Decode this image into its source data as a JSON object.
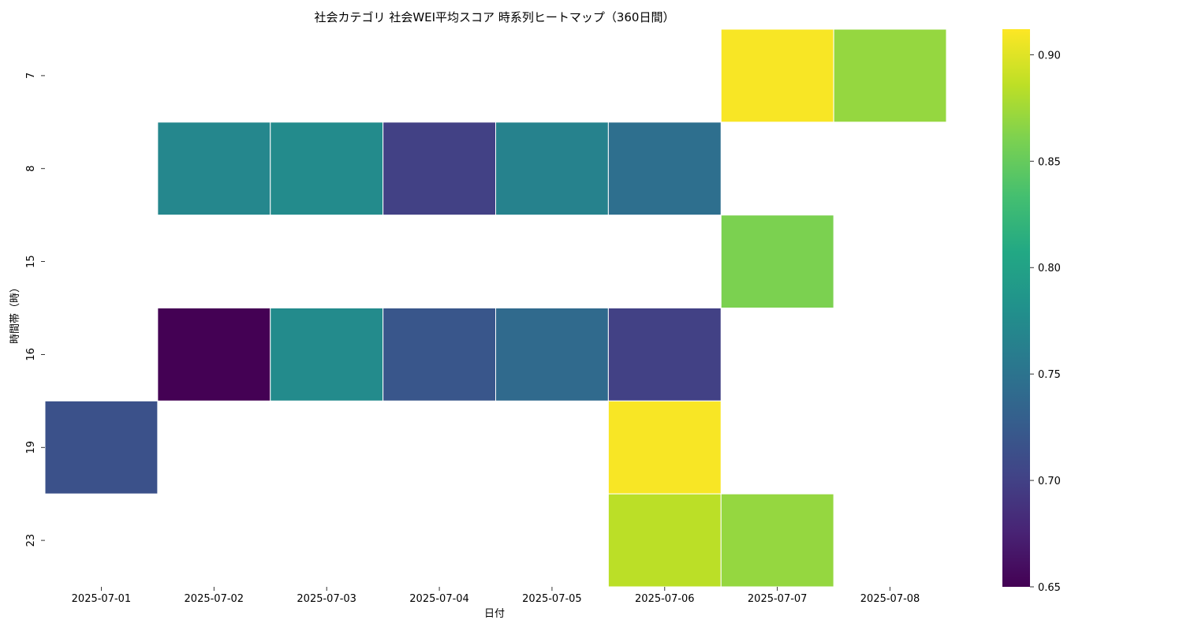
{
  "chart_data": {
    "type": "heatmap",
    "title": "社会カテゴリ 社会WEI平均スコア 時系列ヒートマップ（360日間）",
    "xlabel": "日付",
    "ylabel": "時間帯（時）",
    "x_categories": [
      "2025-07-01",
      "2025-07-02",
      "2025-07-03",
      "2025-07-04",
      "2025-07-05",
      "2025-07-06",
      "2025-07-07",
      "2025-07-08"
    ],
    "y_categories": [
      "7",
      "8",
      "15",
      "16",
      "19",
      "23"
    ],
    "cells": [
      {
        "x": "2025-07-07",
        "y": "7",
        "value": 0.91
      },
      {
        "x": "2025-07-08",
        "y": "7",
        "value": 0.87
      },
      {
        "x": "2025-07-02",
        "y": "8",
        "value": 0.77
      },
      {
        "x": "2025-07-03",
        "y": "8",
        "value": 0.775
      },
      {
        "x": "2025-07-04",
        "y": "8",
        "value": 0.7
      },
      {
        "x": "2025-07-05",
        "y": "8",
        "value": 0.765
      },
      {
        "x": "2025-07-06",
        "y": "8",
        "value": 0.745
      },
      {
        "x": "2025-07-07",
        "y": "15",
        "value": 0.86
      },
      {
        "x": "2025-07-02",
        "y": "16",
        "value": 0.65
      },
      {
        "x": "2025-07-03",
        "y": "16",
        "value": 0.775
      },
      {
        "x": "2025-07-04",
        "y": "16",
        "value": 0.72
      },
      {
        "x": "2025-07-05",
        "y": "16",
        "value": 0.74
      },
      {
        "x": "2025-07-06",
        "y": "16",
        "value": 0.7
      },
      {
        "x": "2025-07-01",
        "y": "19",
        "value": 0.715
      },
      {
        "x": "2025-07-06",
        "y": "19",
        "value": 0.91
      },
      {
        "x": "2025-07-06",
        "y": "23",
        "value": 0.885
      },
      {
        "x": "2025-07-07",
        "y": "23",
        "value": 0.87
      }
    ],
    "colorbar": {
      "colormap": "viridis",
      "min": 0.65,
      "max": 0.912,
      "ticks": [
        "0.65",
        "0.70",
        "0.75",
        "0.80",
        "0.85",
        "0.90"
      ]
    },
    "grid": false,
    "missing_cells": "blank"
  }
}
